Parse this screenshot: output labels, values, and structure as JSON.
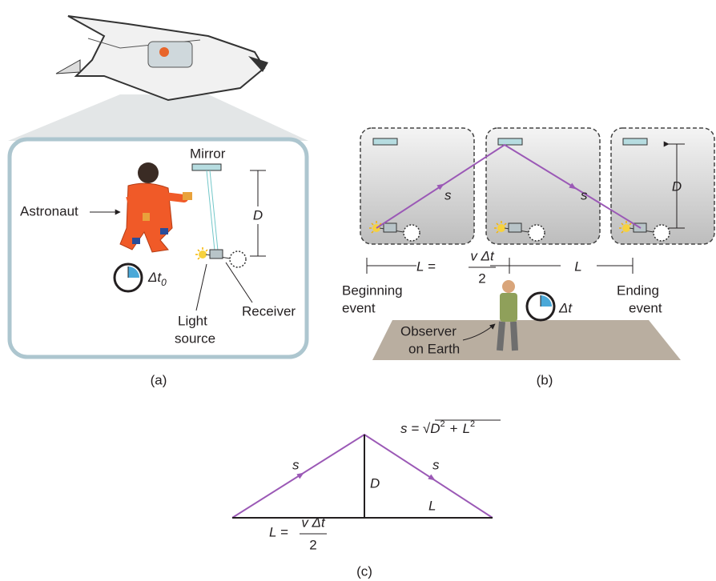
{
  "panel_a": {
    "mirror": "Mirror",
    "astronaut": "Astronaut",
    "clock_symbol": "Δt",
    "clock_subscript": "0",
    "distance": "D",
    "light_source": [
      "Light",
      "source"
    ],
    "receiver": "Receiver",
    "caption": "(a)"
  },
  "panel_b": {
    "path_labels": [
      "s",
      "s"
    ],
    "distance": "D",
    "half_length": {
      "lhs": "L =",
      "numerator": "v Δt",
      "denominator": "2"
    },
    "length": "L",
    "beginning": [
      "Beginning",
      "event"
    ],
    "ending": [
      "Ending",
      "event"
    ],
    "clock_symbol": "Δt",
    "observer": [
      "Observer",
      "on Earth"
    ],
    "caption": "(b)"
  },
  "panel_c": {
    "formula": {
      "lhs": "s =",
      "radical": "√",
      "d": "D",
      "d_exp": "2",
      "plus": "+",
      "l": "L",
      "l_exp": "2"
    },
    "path_labels": [
      "s",
      "s"
    ],
    "height": "D",
    "half_length": {
      "lhs": "L =",
      "numerator": "v Δt",
      "denominator": "2"
    },
    "length": "L",
    "caption": "(c)"
  }
}
